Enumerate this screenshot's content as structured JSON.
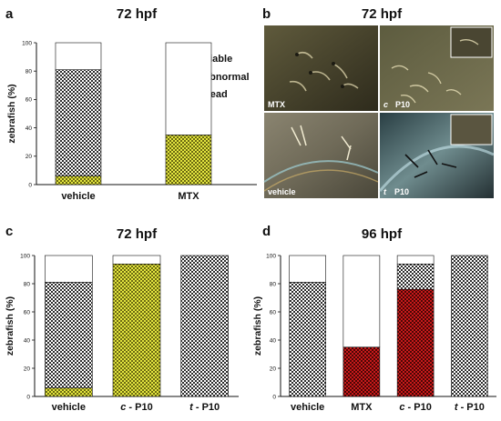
{
  "colors": {
    "viable": "#ffffff",
    "abnormal": "#e4e640",
    "dead": "#c81a1a",
    "axis": "#111111"
  },
  "legend": {
    "viable": "viable",
    "abnormal": "abnormal",
    "dead": "dead"
  },
  "photos": {
    "letter": "b",
    "title": "72 hpf",
    "labels": [
      "MTX",
      "P10",
      "vehicle",
      "P10"
    ],
    "prefixes": [
      "",
      "c",
      "",
      "t"
    ]
  },
  "chart_data": [
    {
      "id": "a",
      "type": "bar",
      "stacked": true,
      "letter": "a",
      "title": "72 hpf",
      "ylabel": "zebrafish (%)",
      "ylim": [
        0,
        100
      ],
      "yticks": [
        0,
        20,
        40,
        60,
        80,
        100
      ],
      "categories": [
        "vehicle",
        "MTX"
      ],
      "category_prefix": [
        "",
        ""
      ],
      "series": [
        {
          "name": "abnormal",
          "values": [
            6,
            35
          ]
        },
        {
          "name": "viable",
          "values": [
            75,
            0
          ]
        },
        {
          "name": "dead",
          "values": [
            0,
            0
          ]
        }
      ],
      "legend": [
        "viable",
        "abnormal",
        "dead"
      ]
    },
    {
      "id": "c",
      "type": "bar",
      "stacked": true,
      "letter": "c",
      "title": "72 hpf",
      "ylabel": "zebrafish (%)",
      "ylim": [
        0,
        100
      ],
      "yticks": [
        0,
        20,
        40,
        60,
        80,
        100
      ],
      "categories": [
        "vehicle",
        "P10",
        "P10"
      ],
      "category_prefix": [
        "",
        "c",
        "t"
      ],
      "series": [
        {
          "name": "abnormal",
          "values": [
            6,
            94,
            0
          ]
        },
        {
          "name": "viable",
          "values": [
            75,
            0,
            100
          ]
        },
        {
          "name": "dead",
          "values": [
            0,
            0,
            0
          ]
        }
      ]
    },
    {
      "id": "d",
      "type": "bar",
      "stacked": true,
      "letter": "d",
      "title": "96 hpf",
      "ylabel": "zebrafish (%)",
      "ylim": [
        0,
        100
      ],
      "yticks": [
        0,
        20,
        40,
        60,
        80,
        100
      ],
      "categories": [
        "vehicle",
        "MTX",
        "P10",
        "P10"
      ],
      "category_prefix": [
        "",
        "",
        "c",
        "t"
      ],
      "series": [
        {
          "name": "dead",
          "values": [
            0,
            35,
            76,
            0
          ]
        },
        {
          "name": "abnormal",
          "values": [
            0,
            0,
            0,
            0
          ]
        },
        {
          "name": "viable",
          "values": [
            81,
            0,
            18,
            100
          ]
        }
      ]
    }
  ]
}
